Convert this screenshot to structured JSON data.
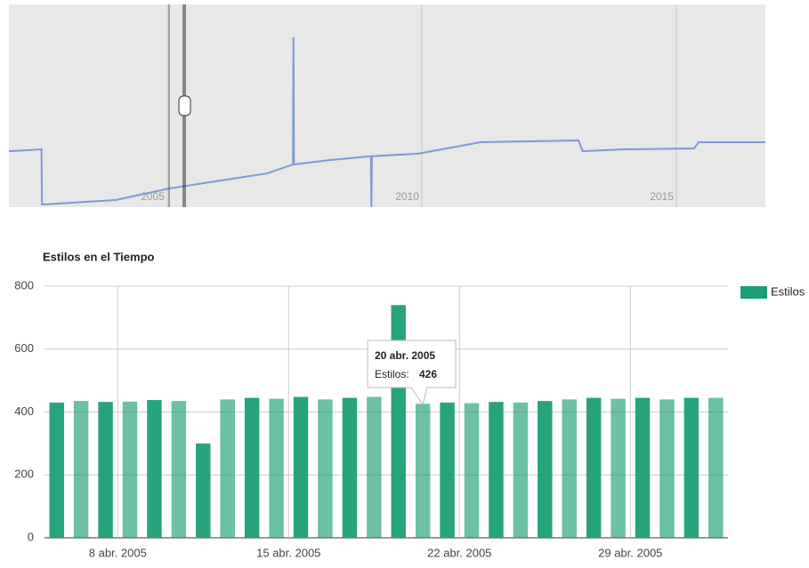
{
  "chart_data": [
    {
      "type": "line",
      "x": [
        2001.89,
        2002.53,
        2002.54,
        2002.62,
        2003.99,
        2005.03,
        2006.96,
        2007.47,
        2007.48,
        2007.49,
        2008.18,
        2009.0,
        2009.01,
        2009.02,
        2009.93,
        2011.15,
        2013.08,
        2013.16,
        2013.95,
        2015.35,
        2015.44,
        2016.75
      ],
      "series": [
        {
          "name": null,
          "color": "#7c9bd6",
          "values": [
            244,
            252,
            12,
            12,
            31,
            81,
            147,
            186,
            740,
            186,
            205,
            222,
            0,
            222,
            233,
            283,
            291,
            244,
            252,
            256,
            283,
            283
          ]
        }
      ],
      "xlim": [
        2001.89,
        2016.75
      ],
      "ylim": [
        0,
        884
      ],
      "xticks": [
        2005,
        2010,
        2015
      ],
      "grid": true
    },
    {
      "type": "bar",
      "title": "Estilos en el Tiempo",
      "x": [
        "2005-04-05",
        "2005-04-06",
        "2005-04-07",
        "2005-04-08",
        "2005-04-09",
        "2005-04-10",
        "2005-04-11",
        "2005-04-12",
        "2005-04-13",
        "2005-04-14",
        "2005-04-15",
        "2005-04-16",
        "2005-04-17",
        "2005-04-18",
        "2005-04-19",
        "2005-04-20",
        "2005-04-21",
        "2005-04-22",
        "2005-04-23",
        "2005-04-24",
        "2005-04-25",
        "2005-04-26",
        "2005-04-27",
        "2005-04-28",
        "2005-04-29",
        "2005-04-30",
        "2005-05-01",
        "2005-05-02"
      ],
      "series": [
        {
          "name": "Estilos",
          "color": "#1b9e77",
          "values": [
            430,
            435,
            432,
            433,
            438,
            435,
            300,
            440,
            445,
            442,
            448,
            440,
            445,
            448,
            740,
            426,
            430,
            428,
            432,
            430,
            435,
            440,
            445,
            442,
            445,
            440,
            445,
            445
          ]
        }
      ],
      "xlim": [
        "2005-04-05",
        "2005-05-03"
      ],
      "ylim": [
        0,
        800
      ],
      "yticks": [
        0,
        200,
        400,
        600,
        800
      ],
      "xticks": [
        {
          "value": "2005-04-08",
          "label": "8 abr. 2005"
        },
        {
          "value": "2005-04-15",
          "label": "15 abr. 2005"
        },
        {
          "value": "2005-04-22",
          "label": "22 abr. 2005"
        },
        {
          "value": "2005-04-29",
          "label": "29 abr. 2005"
        }
      ],
      "grid": true,
      "legend": "right",
      "tooltip": {
        "date": "20 abr. 2005",
        "label": "Estilos:",
        "value": 426
      }
    }
  ]
}
